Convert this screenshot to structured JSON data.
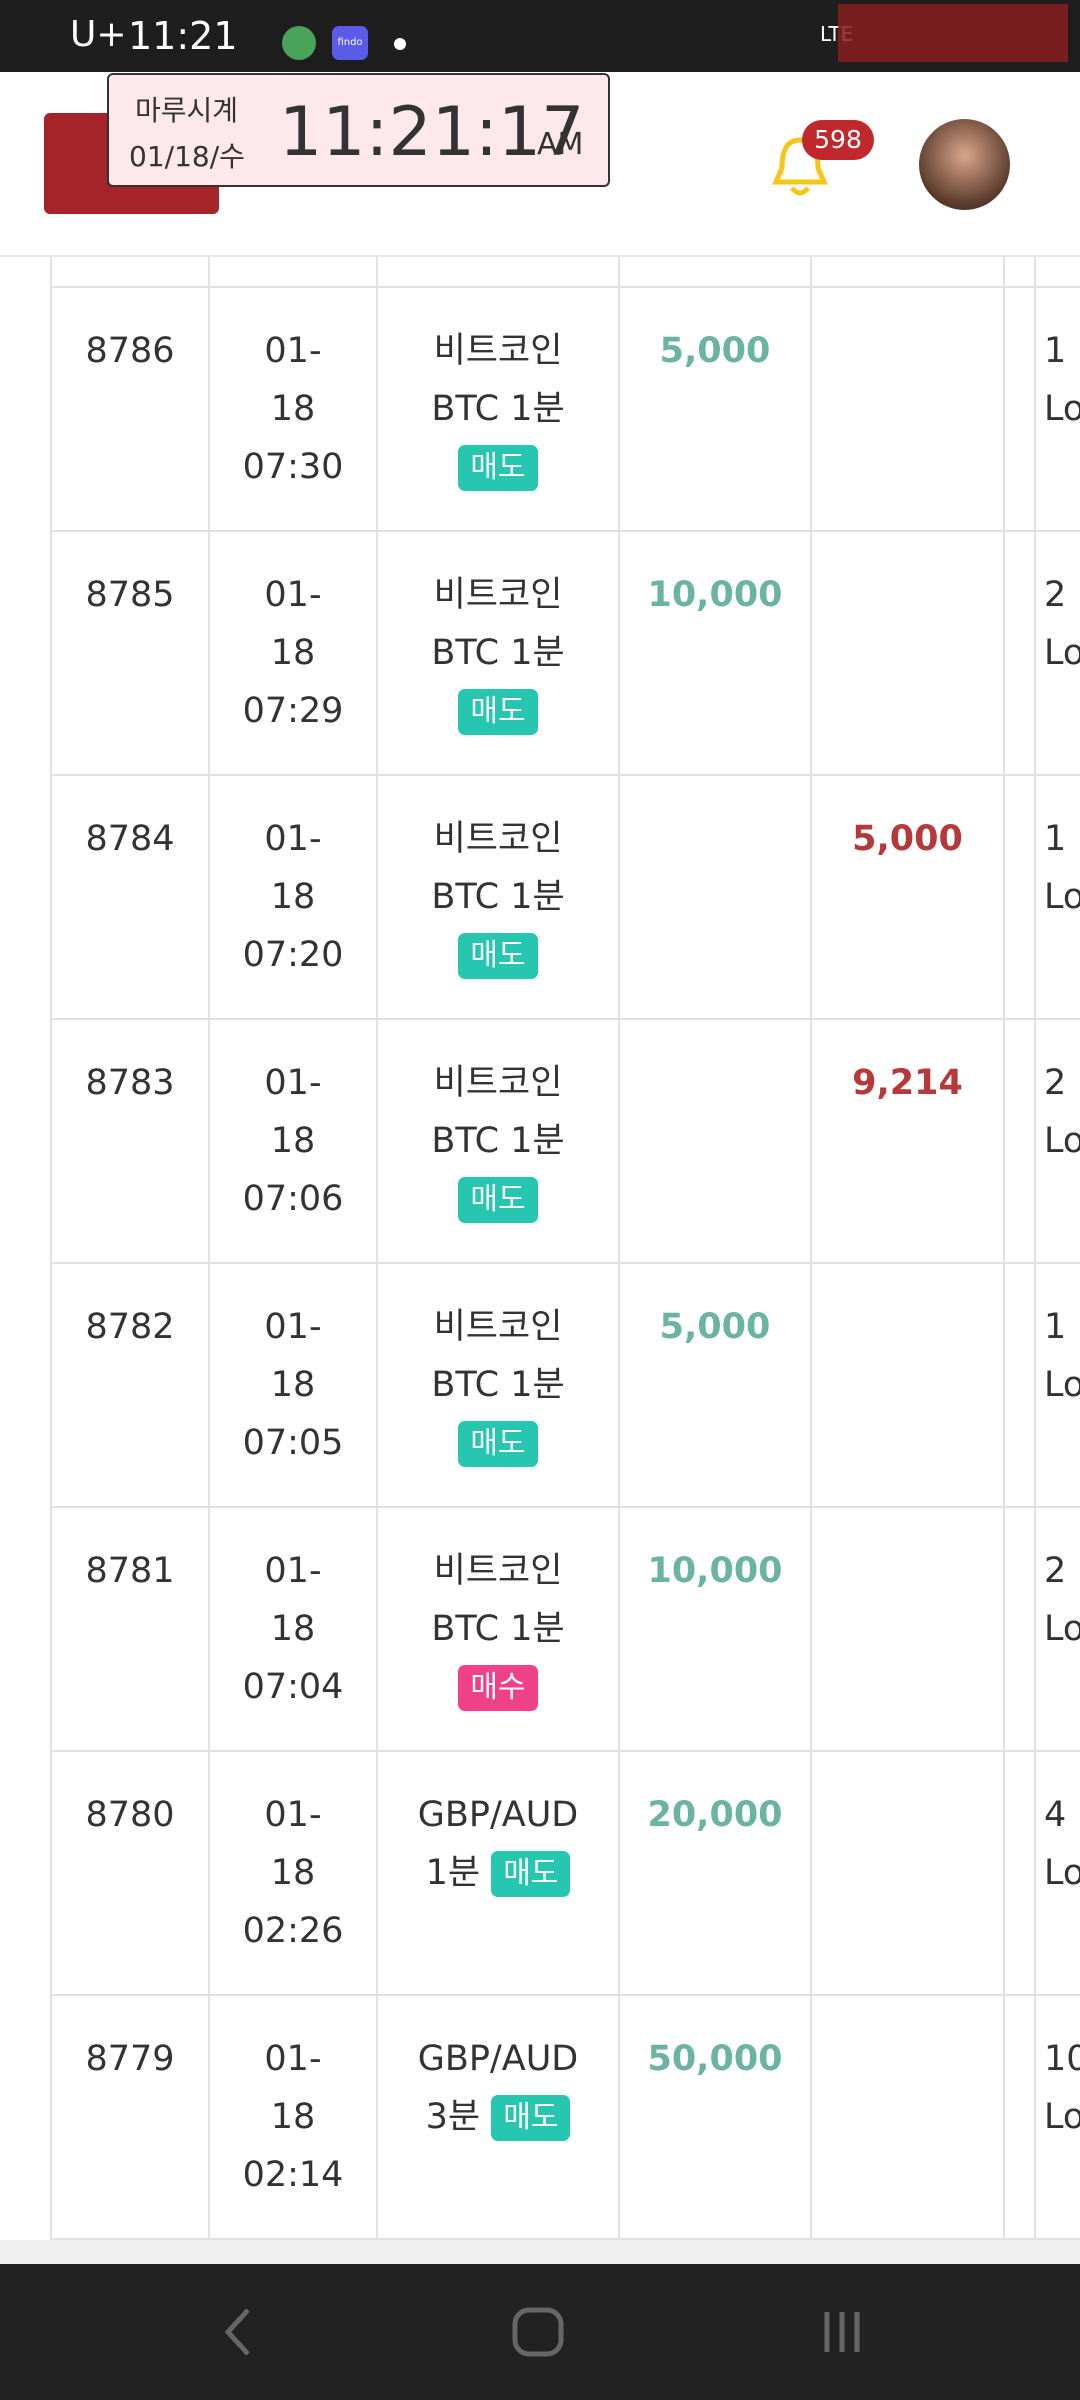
{
  "status_bar": {
    "carrier": "U+",
    "time": "11:21",
    "app_label": "findo",
    "network": "LTE"
  },
  "clock_overlay": {
    "name": "마루시계",
    "date": "01/18/수",
    "time": "11:21:17",
    "ampm": "AM"
  },
  "header": {
    "notification_count": "598"
  },
  "table": {
    "rows": [
      {
        "id": "8786",
        "date": [
          "01-",
          "18",
          "07:30"
        ],
        "product": [
          "비트코인",
          "BTC 1분"
        ],
        "tag": "매도",
        "tag_color": "#26c6b0",
        "profit": "5,000",
        "amount": [
          "1",
          "Lo"
        ]
      },
      {
        "id": "8785",
        "date": [
          "01-",
          "18",
          "07:29"
        ],
        "product": [
          "비트코인",
          "BTC 1분"
        ],
        "tag": "매도",
        "tag_color": "#26c6b0",
        "profit": "10,000",
        "amount": [
          "2",
          "Lo"
        ]
      },
      {
        "id": "8784",
        "date": [
          "01-",
          "18",
          "07:20"
        ],
        "product": [
          "비트코인",
          "BTC 1분"
        ],
        "tag": "매도",
        "tag_color": "#26c6b0",
        "loss": "5,000",
        "amount": [
          "1",
          "Lo"
        ]
      },
      {
        "id": "8783",
        "date": [
          "01-",
          "18",
          "07:06"
        ],
        "product": [
          "비트코인",
          "BTC 1분"
        ],
        "tag": "매도",
        "tag_color": "#26c6b0",
        "loss": "9,214",
        "amount": [
          "2",
          "Lo"
        ]
      },
      {
        "id": "8782",
        "date": [
          "01-",
          "18",
          "07:05"
        ],
        "product": [
          "비트코인",
          "BTC 1분"
        ],
        "tag": "매도",
        "tag_color": "#26c6b0",
        "profit": "5,000",
        "amount": [
          "1",
          "Lo"
        ]
      },
      {
        "id": "8781",
        "date": [
          "01-",
          "18",
          "07:04"
        ],
        "product": [
          "비트코인",
          "BTC 1분"
        ],
        "tag": "매수",
        "tag_color": "#f0408a",
        "profit": "10,000",
        "amount": [
          "2",
          "Lo"
        ]
      },
      {
        "id": "8780",
        "date": [
          "01-",
          "18",
          "02:26"
        ],
        "product": [
          "GBP/AUD",
          "1분"
        ],
        "tag": "매도",
        "tag_color": "#26c6b0",
        "profit": "20,000",
        "amount": [
          "4",
          "Lo"
        ]
      },
      {
        "id": "8779",
        "date": [
          "01-",
          "18",
          "02:14"
        ],
        "product": [
          "GBP/AUD",
          "3분"
        ],
        "tag": "매도",
        "tag_color": "#26c6b0",
        "profit": "50,000",
        "amount": [
          "10",
          "Lo"
        ]
      }
    ]
  }
}
